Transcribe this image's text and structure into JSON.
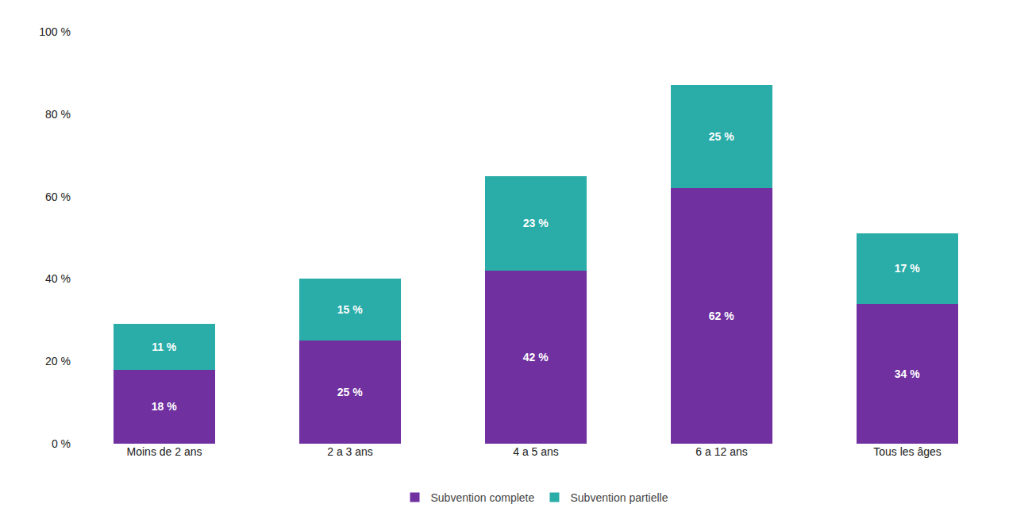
{
  "chart_data": {
    "type": "bar",
    "stacked": true,
    "categories": [
      "Moins de 2 ans",
      "2 a 3 ans",
      "4 a 5 ans",
      "6 a 12 ans",
      "Tous les âges"
    ],
    "series": [
      {
        "name": "Subvention complete",
        "color": "#7030A0",
        "values": [
          18,
          25,
          42,
          62,
          34
        ],
        "value_labels": [
          "18 %",
          "25 %",
          "42 %",
          "62 %",
          "34 %"
        ]
      },
      {
        "name": "Subvention partielle",
        "color": "#2AACA8",
        "values": [
          11,
          15,
          23,
          25,
          17
        ],
        "value_labels": [
          "11 %",
          "15 %",
          "23 %",
          "25 %",
          "17 %"
        ]
      }
    ],
    "ylim": [
      0,
      100
    ],
    "yticks": [
      {
        "value": 0,
        "label": "0 %"
      },
      {
        "value": 20,
        "label": "20 %"
      },
      {
        "value": 40,
        "label": "40 %"
      },
      {
        "value": 60,
        "label": "60 %"
      },
      {
        "value": 80,
        "label": "80 %"
      },
      {
        "value": 100,
        "label": "100 %"
      }
    ],
    "data_labels": true,
    "grid": false,
    "legend": "bottom"
  }
}
